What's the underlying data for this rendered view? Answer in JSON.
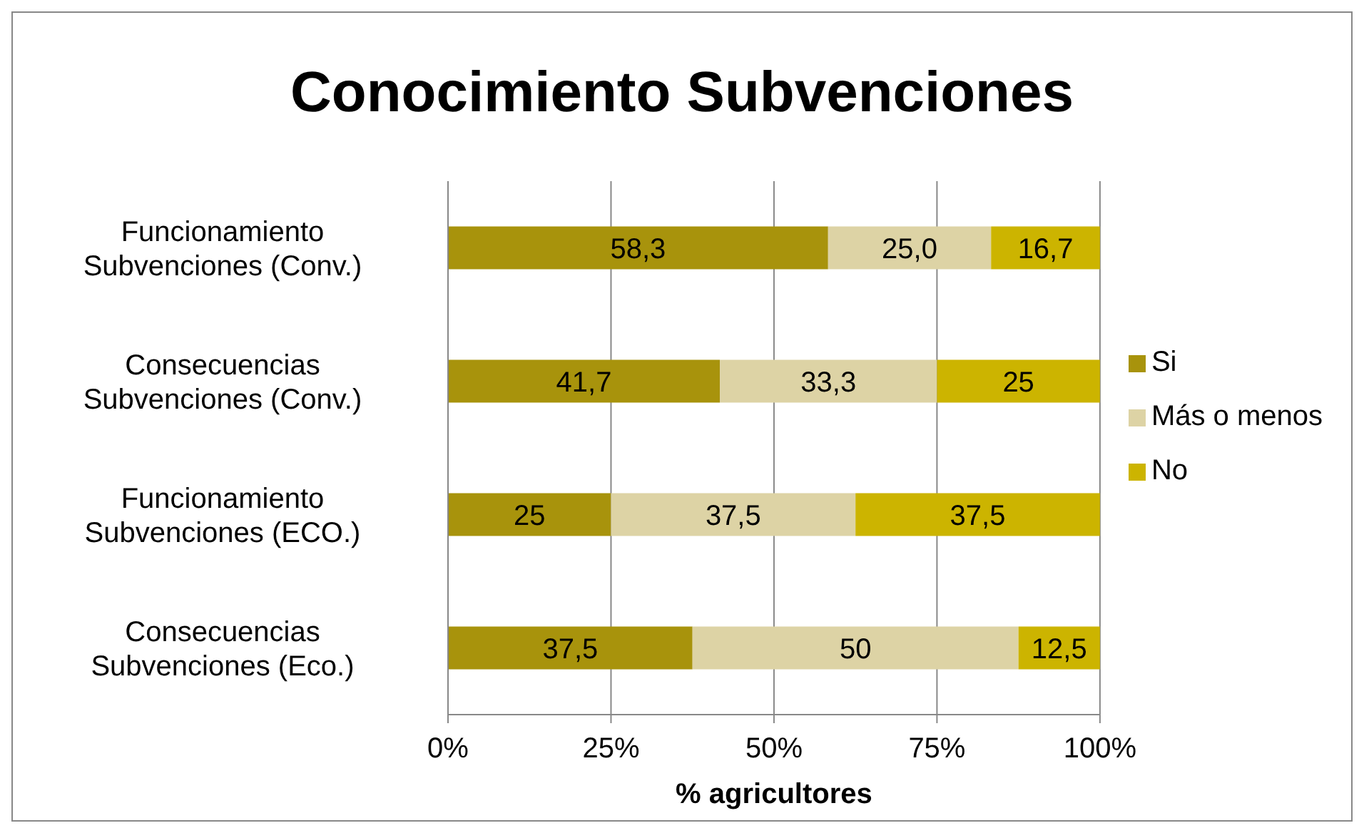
{
  "chart_data": {
    "type": "bar",
    "orientation": "horizontal",
    "stacked": true,
    "title": "Conocimiento Subvenciones",
    "xlabel": "% agricultores",
    "categories": [
      "Funcionamiento Subvenciones (Conv.)",
      "Consecuencias Subvenciones (Conv.)",
      "Funcionamiento Subvenciones (ECO.)",
      "Consecuencias Subvenciones (Eco.)"
    ],
    "series": [
      {
        "name": "Si",
        "color": "#a8930c",
        "values": [
          58.3,
          41.7,
          25,
          37.5
        ],
        "value_labels": [
          "58,3",
          "41,7",
          "25",
          "37,5"
        ]
      },
      {
        "name": "Más o menos",
        "color": "#ddd3a5",
        "values": [
          25.0,
          33.3,
          37.5,
          50
        ],
        "value_labels": [
          "25,0",
          "33,3",
          "37,5",
          "50"
        ]
      },
      {
        "name": "No",
        "color": "#ccb400",
        "values": [
          16.7,
          25,
          37.5,
          12.5
        ],
        "value_labels": [
          "16,7",
          "25",
          "37,5",
          "12,5"
        ]
      }
    ],
    "xlim": [
      0,
      100
    ],
    "xticks": [
      {
        "value": 0,
        "label": "0%"
      },
      {
        "value": 25,
        "label": "25%"
      },
      {
        "value": 50,
        "label": "50%"
      },
      {
        "value": 75,
        "label": "75%"
      },
      {
        "value": 100,
        "label": "100%"
      }
    ],
    "grid": "x",
    "legend": "right"
  }
}
